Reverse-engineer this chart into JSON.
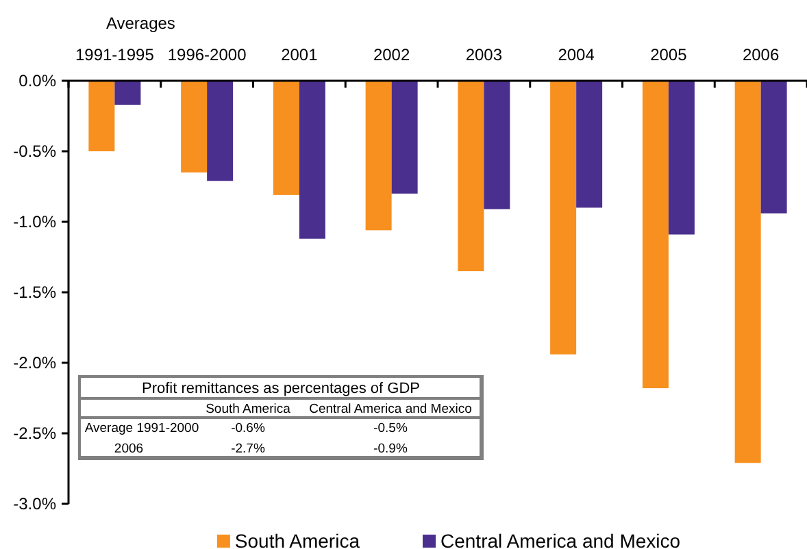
{
  "chart_data": {
    "type": "bar",
    "categories": [
      "1991-1995",
      "1996-2000",
      "2001",
      "2002",
      "2003",
      "2004",
      "2005",
      "2006"
    ],
    "series": [
      {
        "name": "South America",
        "color": "#f7901e",
        "values": [
          -0.5,
          -0.65,
          -0.81,
          -1.06,
          -1.35,
          -1.94,
          -2.18,
          -2.71
        ]
      },
      {
        "name": "Central America and Mexico",
        "color": "#4b2f8e",
        "values": [
          -0.17,
          -0.71,
          -1.12,
          -0.8,
          -0.91,
          -0.9,
          -1.09,
          -0.94
        ]
      }
    ],
    "ylim": [
      -3,
      0
    ],
    "yticks": [
      {
        "value": 0,
        "label": "0.0%"
      },
      {
        "value": -0.5,
        "label": "-0.5%"
      },
      {
        "value": -1,
        "label": "-1.0%"
      },
      {
        "value": -1.5,
        "label": "-1.5%"
      },
      {
        "value": -2,
        "label": "-2.0%"
      },
      {
        "value": -2.5,
        "label": "-2.5%"
      },
      {
        "value": -3,
        "label": "-3.0%"
      }
    ],
    "annotations": [
      "Averages",
      "Profit remittances as percentages of GDP",
      "South America",
      "Central America and Mexico",
      "Average 1991-2000",
      "-0.6%",
      "-0.5%",
      "2006",
      "-2.7%",
      "-0.9%"
    ],
    "legend": "bottom"
  }
}
